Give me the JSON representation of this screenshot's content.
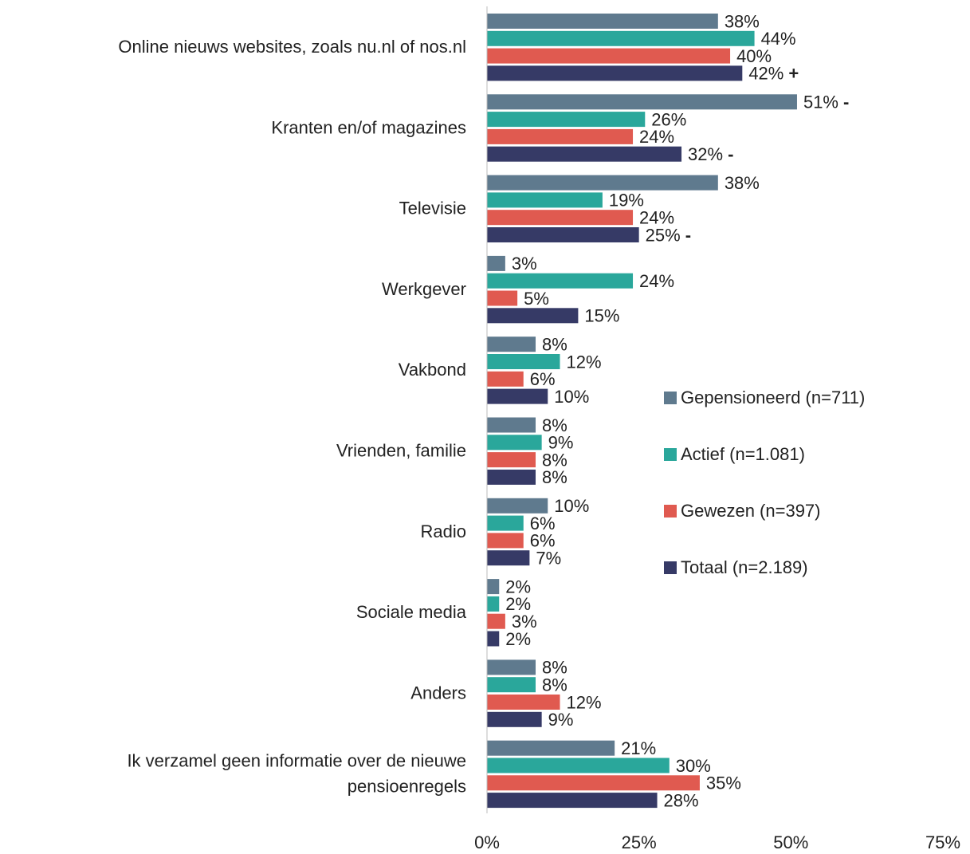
{
  "chart_data": {
    "type": "hbar",
    "categories": [
      "Online nieuws websites, zoals nu.nl of nos.nl",
      "Kranten en/of magazines",
      "Televisie",
      "Werkgever",
      "Vakbond",
      "Vrienden, familie",
      "Radio",
      "Sociale media",
      "Anders",
      "Ik verzamel geen informatie over de nieuwe\npensioenregels"
    ],
    "series": [
      {
        "name": "Gepensioneerd (n=711)",
        "color": "#5f7a8e",
        "values": [
          38,
          51,
          38,
          3,
          8,
          8,
          10,
          2,
          8,
          21
        ],
        "value_labels": [
          "38%",
          "51%",
          "38%",
          "3%",
          "8%",
          "8%",
          "10%",
          "2%",
          "8%",
          "21%"
        ],
        "markers": [
          null,
          "-",
          null,
          null,
          null,
          null,
          null,
          null,
          null,
          null
        ]
      },
      {
        "name": "Actief (n=1.081)",
        "color": "#2aa79b",
        "values": [
          44,
          26,
          19,
          24,
          12,
          9,
          6,
          2,
          8,
          30
        ],
        "value_labels": [
          "44%",
          "26%",
          "19%",
          "24%",
          "12%",
          "9%",
          "6%",
          "2%",
          "8%",
          "30%"
        ],
        "markers": [
          null,
          null,
          null,
          null,
          null,
          null,
          null,
          null,
          null,
          null
        ]
      },
      {
        "name": "Gewezen (n=397)",
        "color": "#e05a50",
        "values": [
          40,
          24,
          24,
          5,
          6,
          8,
          6,
          3,
          12,
          35
        ],
        "value_labels": [
          "40%",
          "24%",
          "24%",
          "5%",
          "6%",
          "8%",
          "6%",
          "3%",
          "12%",
          "35%"
        ],
        "markers": [
          null,
          null,
          null,
          null,
          null,
          null,
          null,
          null,
          null,
          null
        ]
      },
      {
        "name": "Totaal (n=2.189)",
        "color": "#363a66",
        "values": [
          42,
          32,
          25,
          15,
          10,
          8,
          7,
          2,
          9,
          28
        ],
        "value_labels": [
          "42%",
          "32%",
          "25%",
          "15%",
          "10%",
          "8%",
          "7%",
          "2%",
          "9%",
          "28%"
        ],
        "markers": [
          "+",
          "-",
          "-",
          null,
          null,
          null,
          null,
          null,
          null,
          null
        ]
      }
    ],
    "xlim": [
      0,
      75
    ],
    "xticks": [
      {
        "value": 0,
        "label": "0%"
      },
      {
        "value": 25,
        "label": "25%"
      },
      {
        "value": 50,
        "label": "50%"
      },
      {
        "value": 75,
        "label": "75%"
      }
    ],
    "legend": "right"
  }
}
